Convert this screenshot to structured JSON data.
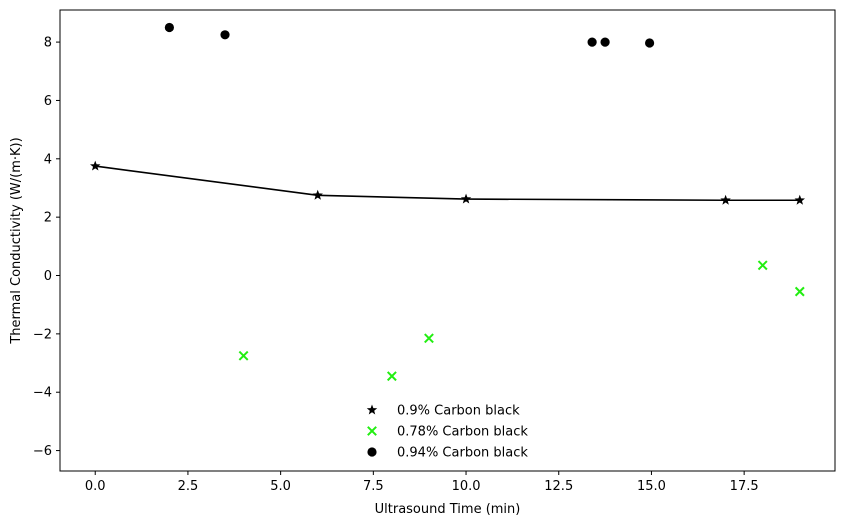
{
  "chart_data": {
    "type": "scatter",
    "xlabel": "Ultrasound Time (min)",
    "ylabel": "Thermal Conductivity (W/(m·K))",
    "xlim": [
      -0.95,
      19.95
    ],
    "ylim": [
      -6.7,
      9.1
    ],
    "xticks": [
      0.0,
      2.5,
      5.0,
      7.5,
      10.0,
      12.5,
      15.0,
      17.5
    ],
    "xtick_labels": [
      "0.0",
      "2.5",
      "5.0",
      "7.5",
      "10.0",
      "12.5",
      "15.0",
      "17.5"
    ],
    "yticks": [
      -6,
      -4,
      -2,
      0,
      2,
      4,
      6,
      8
    ],
    "ytick_labels": [
      "−6",
      "−4",
      "−2",
      "0",
      "2",
      "4",
      "6",
      "8"
    ],
    "grid": false,
    "legend_position": "lower-center",
    "series": [
      {
        "name": "0.9% Carbon black",
        "marker": "star",
        "color": "#000000",
        "connected": true,
        "x": [
          0,
          6,
          10,
          17,
          19
        ],
        "y": [
          3.75,
          2.75,
          2.62,
          2.58,
          2.58
        ]
      },
      {
        "name": "0.78% Carbon black",
        "marker": "x",
        "color": "#22ee11",
        "connected": false,
        "x": [
          4,
          8,
          9,
          18,
          19
        ],
        "y": [
          -2.75,
          -3.45,
          -2.15,
          0.35,
          -0.55
        ]
      },
      {
        "name": "0.94% Carbon black",
        "marker": "circle",
        "color": "#000000",
        "connected": false,
        "x": [
          2,
          3.5,
          13.4,
          13.75,
          14.95
        ],
        "y": [
          8.5,
          8.25,
          8.0,
          8.0,
          7.97
        ]
      }
    ]
  }
}
